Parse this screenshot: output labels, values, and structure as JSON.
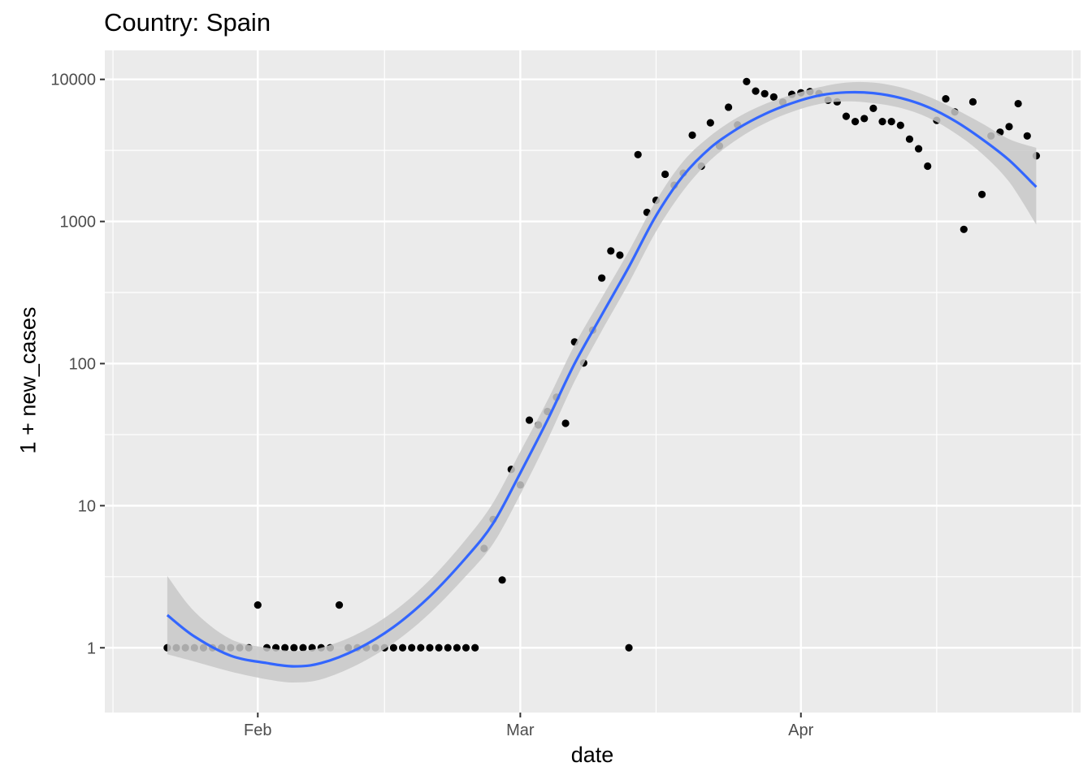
{
  "title": "Country: Spain",
  "chart_data": {
    "type": "scatter",
    "title": "Country: Spain",
    "xlabel": "date",
    "ylabel": "1 + new_cases",
    "y_scale": "log10",
    "xlim": [
      "2020-01-20",
      "2020-04-27"
    ],
    "ylim": [
      0.35,
      16000
    ],
    "x_major_ticks": [
      {
        "date": "2020-02-01",
        "label": "Feb"
      },
      {
        "date": "2020-03-01",
        "label": "Mar"
      },
      {
        "date": "2020-04-01",
        "label": "Apr"
      }
    ],
    "x_minor_ticks": [
      "2020-01-16",
      "2020-02-15",
      "2020-03-16",
      "2020-04-16",
      "2020-05-01"
    ],
    "y_major_ticks": [
      {
        "value": 1,
        "label": "1"
      },
      {
        "value": 10,
        "label": "10"
      },
      {
        "value": 100,
        "label": "100"
      },
      {
        "value": 1000,
        "label": "1000"
      },
      {
        "value": 10000,
        "label": "10000"
      }
    ],
    "grid": true,
    "background": "#ebebeb",
    "point_color": "#000000",
    "smooth_color": "#3366ff",
    "ribbon_color": "#c8c8c8",
    "points": [
      [
        "2020-01-22",
        1
      ],
      [
        "2020-01-23",
        1
      ],
      [
        "2020-01-24",
        1
      ],
      [
        "2020-01-25",
        1
      ],
      [
        "2020-01-26",
        1
      ],
      [
        "2020-01-27",
        1
      ],
      [
        "2020-01-28",
        1
      ],
      [
        "2020-01-29",
        1
      ],
      [
        "2020-01-30",
        1
      ],
      [
        "2020-01-31",
        1
      ],
      [
        "2020-02-01",
        2
      ],
      [
        "2020-02-02",
        1
      ],
      [
        "2020-02-03",
        1
      ],
      [
        "2020-02-04",
        1
      ],
      [
        "2020-02-05",
        1
      ],
      [
        "2020-02-06",
        1
      ],
      [
        "2020-02-07",
        1
      ],
      [
        "2020-02-08",
        1
      ],
      [
        "2020-02-09",
        1
      ],
      [
        "2020-02-10",
        2
      ],
      [
        "2020-02-11",
        1
      ],
      [
        "2020-02-12",
        1
      ],
      [
        "2020-02-13",
        1
      ],
      [
        "2020-02-14",
        1
      ],
      [
        "2020-02-15",
        1
      ],
      [
        "2020-02-16",
        1
      ],
      [
        "2020-02-17",
        1
      ],
      [
        "2020-02-18",
        1
      ],
      [
        "2020-02-19",
        1
      ],
      [
        "2020-02-20",
        1
      ],
      [
        "2020-02-21",
        1
      ],
      [
        "2020-02-22",
        1
      ],
      [
        "2020-02-23",
        1
      ],
      [
        "2020-02-24",
        1
      ],
      [
        "2020-02-25",
        1
      ],
      [
        "2020-02-26",
        5
      ],
      [
        "2020-02-27",
        8
      ],
      [
        "2020-02-28",
        3
      ],
      [
        "2020-02-29",
        18
      ],
      [
        "2020-03-01",
        14
      ],
      [
        "2020-03-02",
        40
      ],
      [
        "2020-03-03",
        37
      ],
      [
        "2020-03-04",
        46
      ],
      [
        "2020-03-05",
        58
      ],
      [
        "2020-03-06",
        38
      ],
      [
        "2020-03-07",
        142
      ],
      [
        "2020-03-08",
        101
      ],
      [
        "2020-03-09",
        172
      ],
      [
        "2020-03-10",
        400
      ],
      [
        "2020-03-11",
        620
      ],
      [
        "2020-03-12",
        580
      ],
      [
        "2020-03-13",
        1
      ],
      [
        "2020-03-14",
        2955
      ],
      [
        "2020-03-15",
        1160
      ],
      [
        "2020-03-16",
        1410
      ],
      [
        "2020-03-17",
        2150
      ],
      [
        "2020-03-18",
        1800
      ],
      [
        "2020-03-19",
        2190
      ],
      [
        "2020-03-20",
        4050
      ],
      [
        "2020-03-21",
        2450
      ],
      [
        "2020-03-22",
        4950
      ],
      [
        "2020-03-23",
        3400
      ],
      [
        "2020-03-24",
        6370
      ],
      [
        "2020-03-25",
        4780
      ],
      [
        "2020-03-26",
        9650
      ],
      [
        "2020-03-27",
        8270
      ],
      [
        "2020-03-28",
        7930
      ],
      [
        "2020-03-29",
        7520
      ],
      [
        "2020-03-30",
        6920
      ],
      [
        "2020-03-31",
        7850
      ],
      [
        "2020-04-01",
        8050
      ],
      [
        "2020-04-02",
        8200
      ],
      [
        "2020-04-03",
        7950
      ],
      [
        "2020-04-04",
        7130
      ],
      [
        "2020-04-05",
        6950
      ],
      [
        "2020-04-06",
        5500
      ],
      [
        "2020-04-07",
        5050
      ],
      [
        "2020-04-08",
        5300
      ],
      [
        "2020-04-09",
        6250
      ],
      [
        "2020-04-10",
        5050
      ],
      [
        "2020-04-11",
        5050
      ],
      [
        "2020-04-12",
        4750
      ],
      [
        "2020-04-13",
        3800
      ],
      [
        "2020-04-14",
        3250
      ],
      [
        "2020-04-15",
        2450
      ],
      [
        "2020-04-16",
        5150
      ],
      [
        "2020-04-17",
        7300
      ],
      [
        "2020-04-18",
        5900
      ],
      [
        "2020-04-19",
        880
      ],
      [
        "2020-04-20",
        6950
      ],
      [
        "2020-04-21",
        1550
      ],
      [
        "2020-04-22",
        4000
      ],
      [
        "2020-04-23",
        4250
      ],
      [
        "2020-04-24",
        4650
      ],
      [
        "2020-04-25",
        6750
      ],
      [
        "2020-04-26",
        4000
      ],
      [
        "2020-04-27",
        2900
      ]
    ],
    "smooth": [
      {
        "date": "2020-01-22",
        "fit": 1.7,
        "lower": 0.9,
        "upper": 3.2
      },
      {
        "date": "2020-01-25",
        "fit": 1.2,
        "lower": 0.8,
        "upper": 1.8
      },
      {
        "date": "2020-01-29",
        "fit": 0.88,
        "lower": 0.68,
        "upper": 1.15
      },
      {
        "date": "2020-02-02",
        "fit": 0.78,
        "lower": 0.6,
        "upper": 1.0
      },
      {
        "date": "2020-02-05",
        "fit": 0.74,
        "lower": 0.57,
        "upper": 0.95
      },
      {
        "date": "2020-02-08",
        "fit": 0.78,
        "lower": 0.6,
        "upper": 1.0
      },
      {
        "date": "2020-02-12",
        "fit": 0.98,
        "lower": 0.76,
        "upper": 1.25
      },
      {
        "date": "2020-02-16",
        "fit": 1.4,
        "lower": 1.08,
        "upper": 1.8
      },
      {
        "date": "2020-02-20",
        "fit": 2.3,
        "lower": 1.75,
        "upper": 3.0
      },
      {
        "date": "2020-02-24",
        "fit": 4.3,
        "lower": 3.2,
        "upper": 5.8
      },
      {
        "date": "2020-02-27",
        "fit": 7.5,
        "lower": 5.4,
        "upper": 10.5
      },
      {
        "date": "2020-03-01",
        "fit": 17.0,
        "lower": 12.0,
        "upper": 24.0
      },
      {
        "date": "2020-03-04",
        "fit": 40.0,
        "lower": 29.0,
        "upper": 55.0
      },
      {
        "date": "2020-03-07",
        "fit": 100.0,
        "lower": 75.0,
        "upper": 135.0
      },
      {
        "date": "2020-03-10",
        "fit": 220.0,
        "lower": 170.0,
        "upper": 290.0
      },
      {
        "date": "2020-03-13",
        "fit": 480.0,
        "lower": 370.0,
        "upper": 620.0
      },
      {
        "date": "2020-03-16",
        "fit": 1100.0,
        "lower": 850.0,
        "upper": 1400.0
      },
      {
        "date": "2020-03-19",
        "fit": 2100.0,
        "lower": 1650.0,
        "upper": 2650.0
      },
      {
        "date": "2020-03-22",
        "fit": 3300.0,
        "lower": 2700.0,
        "upper": 4000.0
      },
      {
        "date": "2020-03-25",
        "fit": 4500.0,
        "lower": 3800.0,
        "upper": 5400.0
      },
      {
        "date": "2020-03-28",
        "fit": 5700.0,
        "lower": 4900.0,
        "upper": 6700.0
      },
      {
        "date": "2020-03-31",
        "fit": 6800.0,
        "lower": 5900.0,
        "upper": 7800.0
      },
      {
        "date": "2020-04-03",
        "fit": 7700.0,
        "lower": 6700.0,
        "upper": 8800.0
      },
      {
        "date": "2020-04-06",
        "fit": 8100.0,
        "lower": 7000.0,
        "upper": 9500.0
      },
      {
        "date": "2020-04-09",
        "fit": 8000.0,
        "lower": 6800.0,
        "upper": 9500.0
      },
      {
        "date": "2020-04-12",
        "fit": 7400.0,
        "lower": 6300.0,
        "upper": 8800.0
      },
      {
        "date": "2020-04-15",
        "fit": 6400.0,
        "lower": 5400.0,
        "upper": 7600.0
      },
      {
        "date": "2020-04-18",
        "fit": 5100.0,
        "lower": 4200.0,
        "upper": 6200.0
      },
      {
        "date": "2020-04-21",
        "fit": 3800.0,
        "lower": 3000.0,
        "upper": 4900.0
      },
      {
        "date": "2020-04-24",
        "fit": 2700.0,
        "lower": 1900.0,
        "upper": 3800.0
      },
      {
        "date": "2020-04-27",
        "fit": 1750.0,
        "lower": 950.0,
        "upper": 3300.0
      }
    ]
  }
}
